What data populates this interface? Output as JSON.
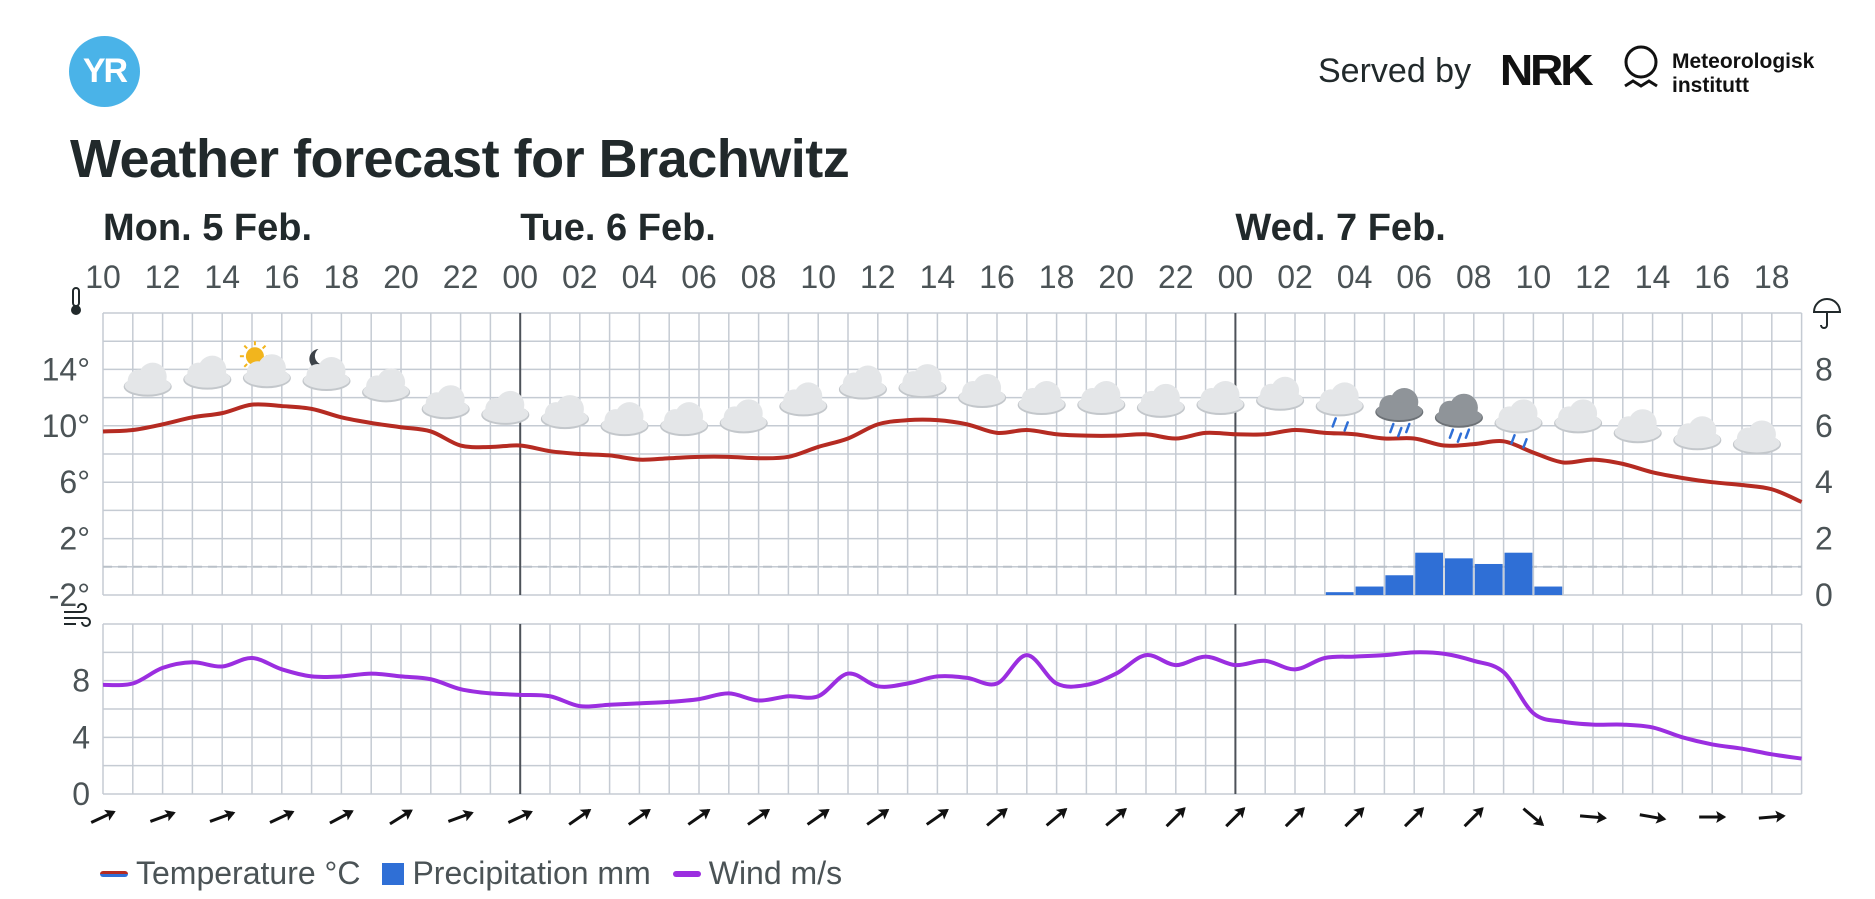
{
  "header": {
    "logo_text": "YR",
    "served_by": "Served by",
    "nrk_logo": "NRK",
    "met_logo_line1": "Meteorologisk",
    "met_logo_line2": "institutt",
    "title": "Weather forecast for Brachwitz"
  },
  "colors": {
    "temperature": "#b52b22",
    "precipitation": "#2f6fd6",
    "wind": "#9b2ee0",
    "grid": "#c5cbd3",
    "day_divider": "#4d5259"
  },
  "chart_data": {
    "type": "line",
    "days": [
      {
        "label": "Mon. 5 Feb.",
        "start_hour_index": 0
      },
      {
        "label": "Tue. 6 Feb.",
        "start_hour_index": 14
      },
      {
        "label": "Wed. 7 Feb.",
        "start_hour_index": 38
      }
    ],
    "hour_labels": [
      "10",
      "12",
      "14",
      "16",
      "18",
      "20",
      "22",
      "00",
      "02",
      "04",
      "06",
      "08",
      "10",
      "12",
      "14",
      "16",
      "18",
      "20",
      "22",
      "00",
      "02",
      "04",
      "06",
      "08",
      "10",
      "12",
      "14",
      "16",
      "18"
    ],
    "hours_start": "Mon 10:00",
    "hours_end": "Wed 18:00",
    "temperature": {
      "name": "Temperature °C",
      "unit": "°C",
      "axis_ticks": [
        "14°",
        "10°",
        "6°",
        "2°",
        "-2°"
      ],
      "ylim": [
        -2,
        18
      ],
      "points": [
        {
          "h": 0,
          "v": 9.6
        },
        {
          "h": 1,
          "v": 9.7
        },
        {
          "h": 2,
          "v": 10.1
        },
        {
          "h": 3,
          "v": 10.6
        },
        {
          "h": 4,
          "v": 10.9
        },
        {
          "h": 5,
          "v": 11.5
        },
        {
          "h": 6,
          "v": 11.4
        },
        {
          "h": 7,
          "v": 11.2
        },
        {
          "h": 8,
          "v": 10.6
        },
        {
          "h": 9,
          "v": 10.2
        },
        {
          "h": 10,
          "v": 9.9
        },
        {
          "h": 11,
          "v": 9.6
        },
        {
          "h": 12,
          "v": 8.6
        },
        {
          "h": 13,
          "v": 8.5
        },
        {
          "h": 14,
          "v": 8.6
        },
        {
          "h": 15,
          "v": 8.2
        },
        {
          "h": 16,
          "v": 8.0
        },
        {
          "h": 17,
          "v": 7.9
        },
        {
          "h": 18,
          "v": 7.6
        },
        {
          "h": 19,
          "v": 7.7
        },
        {
          "h": 20,
          "v": 7.8
        },
        {
          "h": 21,
          "v": 7.8
        },
        {
          "h": 22,
          "v": 7.7
        },
        {
          "h": 23,
          "v": 7.8
        },
        {
          "h": 24,
          "v": 8.5
        },
        {
          "h": 25,
          "v": 9.1
        },
        {
          "h": 26,
          "v": 10.1
        },
        {
          "h": 27,
          "v": 10.4
        },
        {
          "h": 28,
          "v": 10.4
        },
        {
          "h": 29,
          "v": 10.1
        },
        {
          "h": 30,
          "v": 9.5
        },
        {
          "h": 31,
          "v": 9.7
        },
        {
          "h": 32,
          "v": 9.4
        },
        {
          "h": 33,
          "v": 9.3
        },
        {
          "h": 34,
          "v": 9.3
        },
        {
          "h": 35,
          "v": 9.4
        },
        {
          "h": 36,
          "v": 9.1
        },
        {
          "h": 37,
          "v": 9.5
        },
        {
          "h": 38,
          "v": 9.4
        },
        {
          "h": 39,
          "v": 9.4
        },
        {
          "h": 40,
          "v": 9.7
        },
        {
          "h": 41,
          "v": 9.5
        },
        {
          "h": 42,
          "v": 9.4
        },
        {
          "h": 43,
          "v": 9.1
        },
        {
          "h": 44,
          "v": 9.1
        },
        {
          "h": 45,
          "v": 8.6
        },
        {
          "h": 46,
          "v": 8.7
        },
        {
          "h": 47,
          "v": 8.9
        },
        {
          "h": 48,
          "v": 8.1
        },
        {
          "h": 49,
          "v": 7.4
        },
        {
          "h": 50,
          "v": 7.6
        },
        {
          "h": 51,
          "v": 7.3
        },
        {
          "h": 52,
          "v": 6.7
        },
        {
          "h": 53,
          "v": 6.3
        },
        {
          "h": 54,
          "v": 6.0
        },
        {
          "h": 55,
          "v": 5.8
        },
        {
          "h": 56,
          "v": 5.5
        },
        {
          "h": 57,
          "v": 4.6
        }
      ]
    },
    "precipitation": {
      "name": "Precipitation mm",
      "unit": "mm",
      "axis_ticks": [
        "8",
        "6",
        "4",
        "2",
        "0"
      ],
      "ylim": [
        0,
        10
      ],
      "bars": [
        {
          "h": 41,
          "v": 0.1
        },
        {
          "h": 42,
          "v": 0.3
        },
        {
          "h": 43,
          "v": 0.7
        },
        {
          "h": 44,
          "v": 1.5
        },
        {
          "h": 45,
          "v": 1.3
        },
        {
          "h": 46,
          "v": 1.1
        },
        {
          "h": 47,
          "v": 1.5
        },
        {
          "h": 48,
          "v": 0.3
        }
      ]
    },
    "wind": {
      "name": "Wind m/s",
      "unit": "m/s",
      "axis_ticks": [
        "8",
        "4",
        "0"
      ],
      "ylim": [
        0,
        12
      ],
      "points": [
        {
          "h": 0,
          "v": 7.7
        },
        {
          "h": 1,
          "v": 7.8
        },
        {
          "h": 2,
          "v": 8.9
        },
        {
          "h": 3,
          "v": 9.3
        },
        {
          "h": 4,
          "v": 9.0
        },
        {
          "h": 5,
          "v": 9.6
        },
        {
          "h": 6,
          "v": 8.8
        },
        {
          "h": 7,
          "v": 8.3
        },
        {
          "h": 8,
          "v": 8.3
        },
        {
          "h": 9,
          "v": 8.5
        },
        {
          "h": 10,
          "v": 8.3
        },
        {
          "h": 11,
          "v": 8.1
        },
        {
          "h": 12,
          "v": 7.4
        },
        {
          "h": 13,
          "v": 7.1
        },
        {
          "h": 14,
          "v": 7.0
        },
        {
          "h": 15,
          "v": 6.9
        },
        {
          "h": 16,
          "v": 6.2
        },
        {
          "h": 17,
          "v": 6.3
        },
        {
          "h": 18,
          "v": 6.4
        },
        {
          "h": 19,
          "v": 6.5
        },
        {
          "h": 20,
          "v": 6.7
        },
        {
          "h": 21,
          "v": 7.1
        },
        {
          "h": 22,
          "v": 6.6
        },
        {
          "h": 23,
          "v": 6.9
        },
        {
          "h": 24,
          "v": 6.9
        },
        {
          "h": 25,
          "v": 8.5
        },
        {
          "h": 26,
          "v": 7.6
        },
        {
          "h": 27,
          "v": 7.8
        },
        {
          "h": 28,
          "v": 8.3
        },
        {
          "h": 29,
          "v": 8.2
        },
        {
          "h": 30,
          "v": 7.8
        },
        {
          "h": 31,
          "v": 9.8
        },
        {
          "h": 32,
          "v": 7.8
        },
        {
          "h": 33,
          "v": 7.7
        },
        {
          "h": 34,
          "v": 8.5
        },
        {
          "h": 35,
          "v": 9.8
        },
        {
          "h": 36,
          "v": 9.1
        },
        {
          "h": 37,
          "v": 9.7
        },
        {
          "h": 38,
          "v": 9.1
        },
        {
          "h": 39,
          "v": 9.4
        },
        {
          "h": 40,
          "v": 8.8
        },
        {
          "h": 41,
          "v": 9.6
        },
        {
          "h": 42,
          "v": 9.7
        },
        {
          "h": 43,
          "v": 9.8
        },
        {
          "h": 44,
          "v": 10.0
        },
        {
          "h": 45,
          "v": 9.9
        },
        {
          "h": 46,
          "v": 9.4
        },
        {
          "h": 47,
          "v": 8.6
        },
        {
          "h": 48,
          "v": 5.7
        },
        {
          "h": 49,
          "v": 5.1
        },
        {
          "h": 50,
          "v": 4.9
        },
        {
          "h": 51,
          "v": 4.9
        },
        {
          "h": 52,
          "v": 4.7
        },
        {
          "h": 53,
          "v": 4.0
        },
        {
          "h": 54,
          "v": 3.5
        },
        {
          "h": 55,
          "v": 3.2
        },
        {
          "h": 56,
          "v": 2.8
        },
        {
          "h": 57,
          "v": 2.5
        }
      ]
    },
    "weather_symbols": [
      {
        "h": 1,
        "t": 13.2,
        "icon": "cloud"
      },
      {
        "h": 3,
        "t": 13.7,
        "icon": "cloud"
      },
      {
        "h": 5,
        "t": 13.8,
        "icon": "sun-cloud"
      },
      {
        "h": 7,
        "t": 13.6,
        "icon": "moon-cloud"
      },
      {
        "h": 9,
        "t": 12.8,
        "icon": "cloud"
      },
      {
        "h": 11,
        "t": 11.6,
        "icon": "cloud"
      },
      {
        "h": 13,
        "t": 11.2,
        "icon": "cloud"
      },
      {
        "h": 15,
        "t": 10.9,
        "icon": "cloud"
      },
      {
        "h": 17,
        "t": 10.4,
        "icon": "cloud"
      },
      {
        "h": 19,
        "t": 10.4,
        "icon": "cloud"
      },
      {
        "h": 21,
        "t": 10.6,
        "icon": "cloud"
      },
      {
        "h": 23,
        "t": 11.8,
        "icon": "cloud"
      },
      {
        "h": 25,
        "t": 13.0,
        "icon": "cloud"
      },
      {
        "h": 27,
        "t": 13.1,
        "icon": "cloud"
      },
      {
        "h": 29,
        "t": 12.4,
        "icon": "cloud"
      },
      {
        "h": 31,
        "t": 11.9,
        "icon": "cloud"
      },
      {
        "h": 33,
        "t": 11.9,
        "icon": "cloud"
      },
      {
        "h": 35,
        "t": 11.7,
        "icon": "cloud"
      },
      {
        "h": 37,
        "t": 11.9,
        "icon": "cloud"
      },
      {
        "h": 39,
        "t": 12.2,
        "icon": "cloud"
      },
      {
        "h": 41,
        "t": 11.8,
        "icon": "light-rain"
      },
      {
        "h": 43,
        "t": 11.4,
        "icon": "rain-dark"
      },
      {
        "h": 45,
        "t": 11.0,
        "icon": "rain-dark"
      },
      {
        "h": 47,
        "t": 10.6,
        "icon": "light-rain"
      },
      {
        "h": 49,
        "t": 10.6,
        "icon": "cloud"
      },
      {
        "h": 51,
        "t": 9.9,
        "icon": "cloud"
      },
      {
        "h": 53,
        "t": 9.4,
        "icon": "cloud"
      },
      {
        "h": 55,
        "t": 9.1,
        "icon": "cloud"
      }
    ],
    "wind_arrows": [
      {
        "h": 0,
        "deg": 65
      },
      {
        "h": 2,
        "deg": 70
      },
      {
        "h": 4,
        "deg": 70
      },
      {
        "h": 6,
        "deg": 65
      },
      {
        "h": 8,
        "deg": 62
      },
      {
        "h": 10,
        "deg": 58
      },
      {
        "h": 12,
        "deg": 70
      },
      {
        "h": 14,
        "deg": 65
      },
      {
        "h": 16,
        "deg": 55
      },
      {
        "h": 18,
        "deg": 55
      },
      {
        "h": 20,
        "deg": 55
      },
      {
        "h": 22,
        "deg": 55
      },
      {
        "h": 24,
        "deg": 55
      },
      {
        "h": 26,
        "deg": 55
      },
      {
        "h": 28,
        "deg": 55
      },
      {
        "h": 30,
        "deg": 50
      },
      {
        "h": 32,
        "deg": 50
      },
      {
        "h": 34,
        "deg": 50
      },
      {
        "h": 36,
        "deg": 45
      },
      {
        "h": 38,
        "deg": 45
      },
      {
        "h": 40,
        "deg": 45
      },
      {
        "h": 42,
        "deg": 45
      },
      {
        "h": 44,
        "deg": 45
      },
      {
        "h": 46,
        "deg": 45
      },
      {
        "h": 48,
        "deg": 130
      },
      {
        "h": 50,
        "deg": 95
      },
      {
        "h": 52,
        "deg": 100
      },
      {
        "h": 54,
        "deg": 90
      },
      {
        "h": 56,
        "deg": 85
      }
    ]
  },
  "legend": {
    "temperature": "Temperature °C",
    "precipitation": "Precipitation mm",
    "wind": "Wind m/s"
  }
}
